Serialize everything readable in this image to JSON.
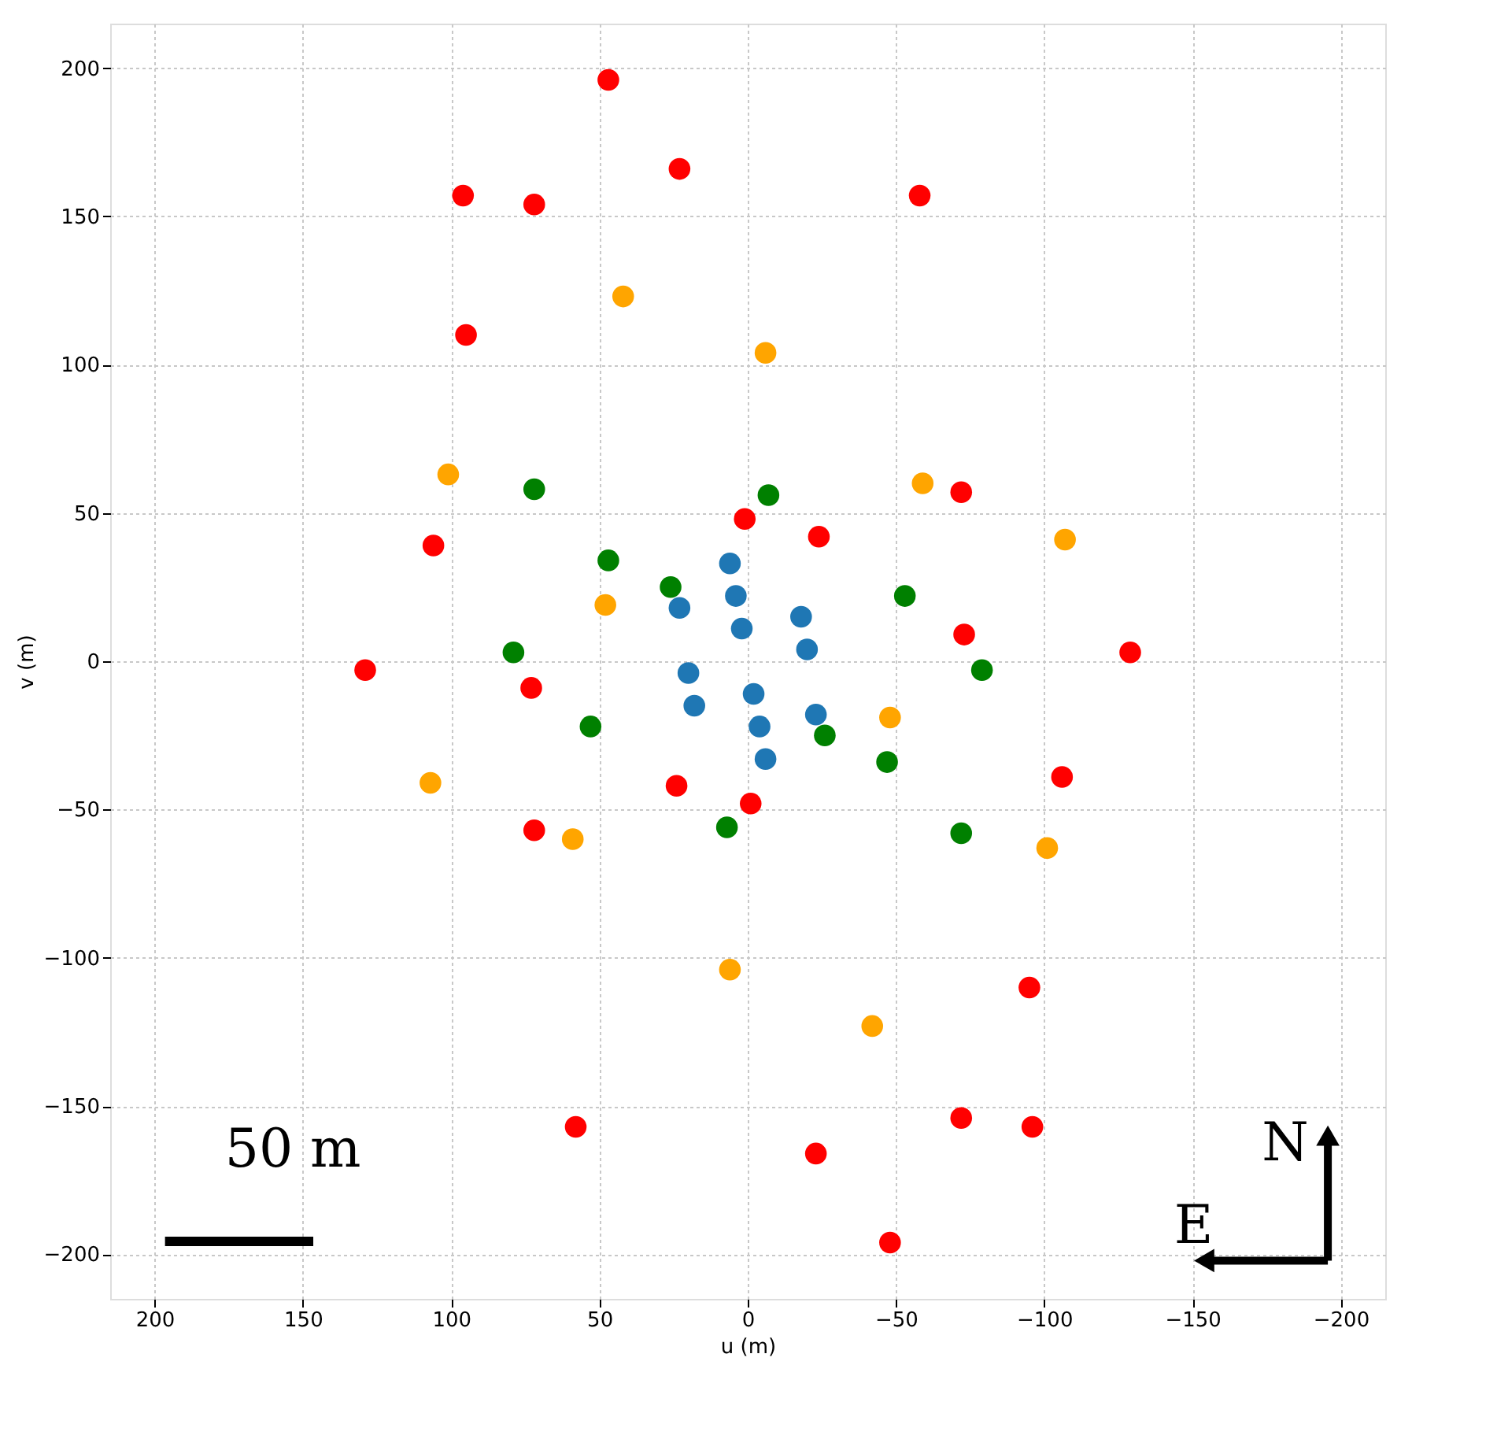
{
  "chart_data": {
    "type": "scatter",
    "xlabel": "u (m)",
    "ylabel": "v (m)",
    "xlim": [
      215,
      -215
    ],
    "ylim": [
      -215,
      215
    ],
    "xticks": [
      200,
      150,
      100,
      50,
      0,
      -50,
      -100,
      -150,
      -200
    ],
    "yticks": [
      -200,
      -150,
      -100,
      -50,
      0,
      50,
      100,
      150,
      200
    ],
    "grid": true,
    "marker": "circle",
    "legend": false,
    "annotations": [
      "50 m",
      "N",
      "E"
    ],
    "series": [
      {
        "color": "#ff0000",
        "x": [
          47,
          -48,
          23,
          -23,
          96,
          -96,
          72,
          -72,
          -58,
          58,
          95,
          -95,
          106,
          -106,
          129,
          -129,
          73,
          -73,
          72,
          -72,
          1,
          -1,
          -24,
          24
        ],
        "values": [
          196,
          -196,
          166,
          -166,
          157,
          -157,
          154,
          -154,
          157,
          -157,
          110,
          -110,
          39,
          -39,
          -3,
          3,
          -9,
          9,
          -57,
          57,
          48,
          -48,
          42,
          -42
        ]
      },
      {
        "color": "#ffa500",
        "x": [
          42,
          -42,
          -6,
          6,
          101,
          -101,
          -59,
          59,
          -107,
          107,
          48,
          -48
        ],
        "values": [
          123,
          -123,
          104,
          -104,
          63,
          -63,
          60,
          -60,
          41,
          -41,
          19,
          -19
        ]
      },
      {
        "color": "#008000",
        "x": [
          72,
          -72,
          -7,
          7,
          47,
          -47,
          26,
          -26,
          79,
          -79,
          -53,
          53
        ],
        "values": [
          58,
          -58,
          56,
          -56,
          34,
          -34,
          25,
          -25,
          3,
          -3,
          22,
          -22
        ]
      },
      {
        "color": "#1f77b4",
        "x": [
          6,
          -6,
          4,
          -4,
          23,
          -23,
          2,
          -2,
          -18,
          18,
          -20,
          20
        ],
        "values": [
          33,
          -33,
          22,
          -22,
          18,
          -18,
          11,
          -11,
          15,
          -15,
          4,
          -4
        ]
      }
    ]
  }
}
